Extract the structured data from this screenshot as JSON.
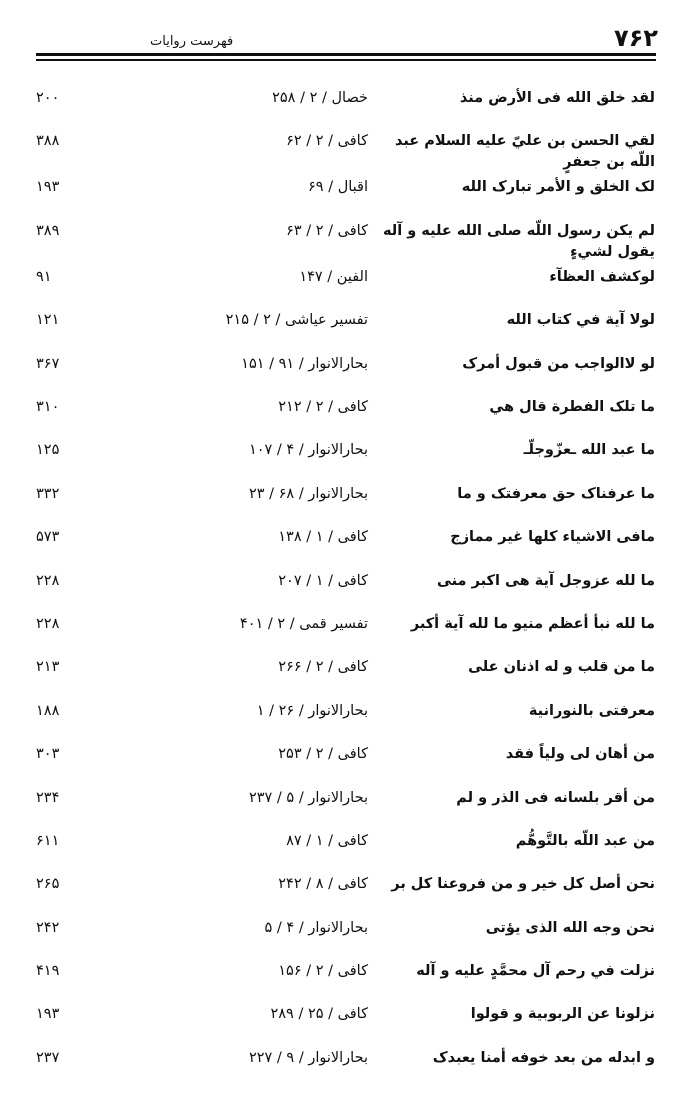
{
  "header": {
    "page_number": "۷۶۲",
    "title": "فهرست روایات"
  },
  "rows": [
    {
      "text": "لقد خلق الله فی الأرض منذ",
      "source": "خصال / ۲ / ۲۵۸",
      "page": "۲۰۰"
    },
    {
      "text": "لقي الحسن بن عليّ عليه السلام عبد اللّه بن جعفرٍ",
      "source": "کافی / ۲ / ۶۲",
      "page": "۳۸۸"
    },
    {
      "text": "لک الخلق و الأمر تبارک الله",
      "source": "اقبال / ۶۹",
      "page": "۱۹۳"
    },
    {
      "text": "لم يكن رسول اللّه صلی الله علیه و آله يقول لشيءٍ",
      "source": "کافی / ۲ / ۶۳",
      "page": "۳۸۹"
    },
    {
      "text": "لوکشف العظآء",
      "source": "الفین / ۱۴۷",
      "page": "۹۱"
    },
    {
      "text": "لولا آية في كتاب الله",
      "source": "تفسیر عیاشی / ۲ / ۲۱۵",
      "page": "۱۲۱"
    },
    {
      "text": "لو لاالواجب من قبول أمرک",
      "source": "بحارالانوار / ۹۱ / ۱۵۱",
      "page": "۳۶۷"
    },
    {
      "text": "ما تلک الفطرة قال هي",
      "source": "کافی / ۲ / ۲۱۲",
      "page": "۳۱۰"
    },
    {
      "text": "ما عبد الله ـعزّوجلّـ",
      "source": "بحارالانوار / ۴ / ۱۰۷",
      "page": "۱۲۵"
    },
    {
      "text": "ما عرفناک حق معرفتک و ما",
      "source": "بحارالانوار / ۶۸ / ۲۳",
      "page": "۳۳۲"
    },
    {
      "text": "مافی الاشیاء کلها غیر ممازج",
      "source": "کافی / ۱ / ۱۳۸",
      "page": "۵۷۳"
    },
    {
      "text": "ما لله عزوجل آية هی اکبر منی",
      "source": "کافی / ۱ / ۲۰۷",
      "page": "۲۲۸"
    },
    {
      "text": "ما لله نبأ أعظم منیو ما لله آية أکبر",
      "source": "تفسیر قمی / ۲ / ۴۰۱",
      "page": "۲۲۸"
    },
    {
      "text": "ما من قلب و له اذنان علی",
      "source": "کافی / ۲ / ۲۶۶",
      "page": "۲۱۳"
    },
    {
      "text": "معرفتی بالنورانية",
      "source": "بحارالانوار / ۲۶ / ۱",
      "page": "۱۸۸"
    },
    {
      "text": "من أهان لی ولیاً فقد",
      "source": "کافی / ۲ / ۲۵۳",
      "page": "۳۰۳"
    },
    {
      "text": "من أقر بلسانه فی الذر و لم",
      "source": "بحارالانوار / ۵ / ۲۳۷",
      "page": "۲۳۴"
    },
    {
      "text": "من عبد اللّه بالتَّوهُّم",
      "source": "کافی / ۱ / ۸۷",
      "page": "۶۱۱"
    },
    {
      "text": "نحن أصل کل خیر و من فروعنا کل بر",
      "source": "کافی / ۸ / ۲۴۲",
      "page": "۲۶۵"
    },
    {
      "text": "نحن وجه الله الذی يؤتی",
      "source": "بحارالانوار / ۴ / ۵",
      "page": "۲۴۲"
    },
    {
      "text": "نزلت في رحم آل محمَّدٍ علیه و آله",
      "source": "کافی / ۲ / ۱۵۶",
      "page": "۴۱۹"
    },
    {
      "text": "نزلونا عن الربوبية و قولوا",
      "source": "کافی / ۲۵ / ۲۸۹",
      "page": "۱۹۳"
    },
    {
      "text": "و ابدله من بعد خوفه أمنا يعبدک",
      "source": "بحارالانوار / ۹ / ۲۲۷",
      "page": "۲۳۷"
    }
  ]
}
